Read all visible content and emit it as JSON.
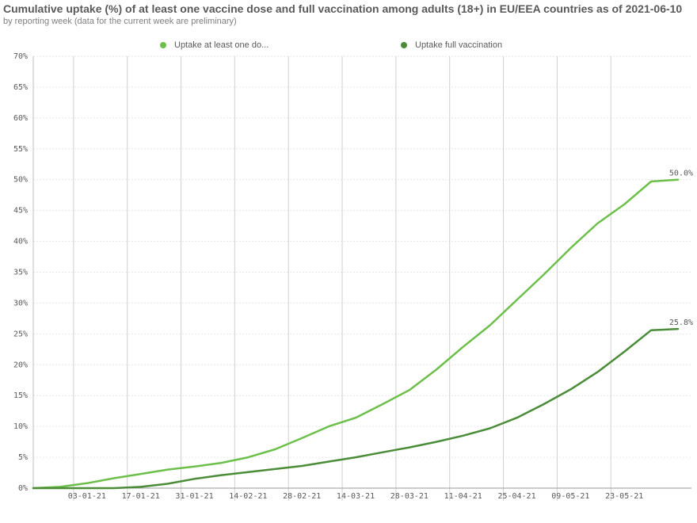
{
  "title": "Cumulative uptake (%) of at least one vaccine dose and full vaccination among adults (18+) in EU/EEA countries as of 2021-06-10",
  "subtitle": "by reporting week (data for the current week are preliminary)",
  "chart_data": {
    "type": "line",
    "xlabel": "",
    "ylabel": "",
    "ylim": [
      0,
      70
    ],
    "yticks": [
      "0%",
      "5%",
      "10%",
      "15%",
      "20%",
      "25%",
      "30%",
      "35%",
      "40%",
      "45%",
      "50%",
      "55%",
      "60%",
      "65%",
      "70%"
    ],
    "x": [
      "20-12-20",
      "27-12-20",
      "03-01-21",
      "10-01-21",
      "17-01-21",
      "24-01-21",
      "31-01-21",
      "07-02-21",
      "14-02-21",
      "21-02-21",
      "28-02-21",
      "07-03-21",
      "14-03-21",
      "21-03-21",
      "28-03-21",
      "04-04-21",
      "11-04-21",
      "18-04-21",
      "25-04-21",
      "02-05-21",
      "09-05-21",
      "16-05-21",
      "23-05-21",
      "30-05-21",
      "06-06-21"
    ],
    "xtick_labels": [
      "03-01-21",
      "17-01-21",
      "31-01-21",
      "14-02-21",
      "28-02-21",
      "14-03-21",
      "28-03-21",
      "11-04-21",
      "25-04-21",
      "09-05-21",
      "23-05-21"
    ],
    "series": [
      {
        "name": "Uptake at least one do...",
        "color": "#6cc04a",
        "values": [
          0.0,
          0.2,
          0.8,
          1.6,
          2.3,
          3.0,
          3.5,
          4.1,
          5.0,
          6.3,
          8.1,
          10.0,
          11.4,
          13.6,
          15.9,
          19.2,
          22.9,
          26.4,
          30.5,
          34.6,
          38.9,
          42.9,
          46.0,
          49.7,
          50.0
        ],
        "end_label": "50.0%"
      },
      {
        "name": "Uptake full vaccination",
        "color": "#4a8c37",
        "values": [
          0.0,
          0.0,
          0.0,
          0.0,
          0.2,
          0.7,
          1.5,
          2.1,
          2.6,
          3.1,
          3.6,
          4.3,
          5.0,
          5.8,
          6.6,
          7.5,
          8.5,
          9.7,
          11.4,
          13.6,
          16.0,
          18.8,
          22.1,
          25.6,
          25.8
        ],
        "end_label": "25.8%"
      }
    ],
    "grid": "vertical-and-horizontal",
    "legend": "top"
  }
}
